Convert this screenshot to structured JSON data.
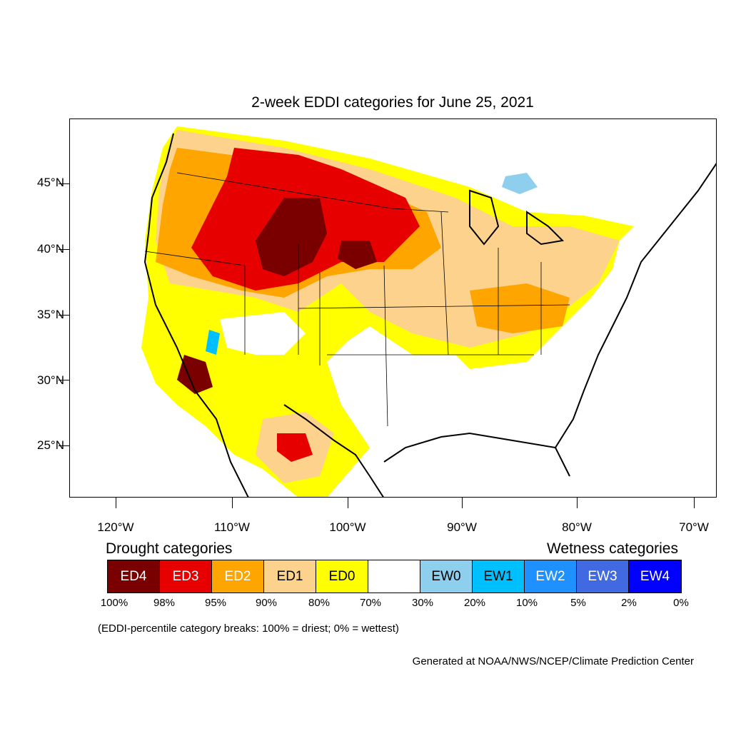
{
  "title": "2-week EDDI categories for June 25, 2021",
  "map": {
    "y_axis": [
      "45°N",
      "40°N",
      "35°N",
      "30°N",
      "25°N"
    ],
    "x_axis": [
      "120°W",
      "110°W",
      "100°W",
      "90°W",
      "80°W",
      "70°W"
    ]
  },
  "legend": {
    "drought_title": "Drought categories",
    "wetness_title": "Wetness categories",
    "categories": [
      {
        "label": "ED4",
        "color": "#7a0000",
        "text_color": "#ffffff"
      },
      {
        "label": "ED3",
        "color": "#e60000",
        "text_color": "#ffffff"
      },
      {
        "label": "ED2",
        "color": "#ffa500",
        "text_color": "#ffffff"
      },
      {
        "label": "ED1",
        "color": "#fcd28c",
        "text_color": "#000000"
      },
      {
        "label": "ED0",
        "color": "#ffff00",
        "text_color": "#000000"
      },
      {
        "label": "",
        "color": "#ffffff",
        "text_color": "#000000"
      },
      {
        "label": "EW0",
        "color": "#8ecfee",
        "text_color": "#000000"
      },
      {
        "label": "EW1",
        "color": "#00bfff",
        "text_color": "#000000"
      },
      {
        "label": "EW2",
        "color": "#1e90ff",
        "text_color": "#ffffff"
      },
      {
        "label": "EW3",
        "color": "#4169e1",
        "text_color": "#ffffff"
      },
      {
        "label": "EW4",
        "color": "#0000ff",
        "text_color": "#ffffff"
      }
    ],
    "percentiles": [
      "100%",
      "98%",
      "95%",
      "90%",
      "80%",
      "70%",
      "30%",
      "20%",
      "10%",
      "5%",
      "2%",
      "0%"
    ]
  },
  "breaks_note": "(EDDI-percentile category breaks: 100% = driest; 0% = wettest)",
  "credit": "Generated at NOAA/NWS/NCEP/Climate Prediction Center"
}
